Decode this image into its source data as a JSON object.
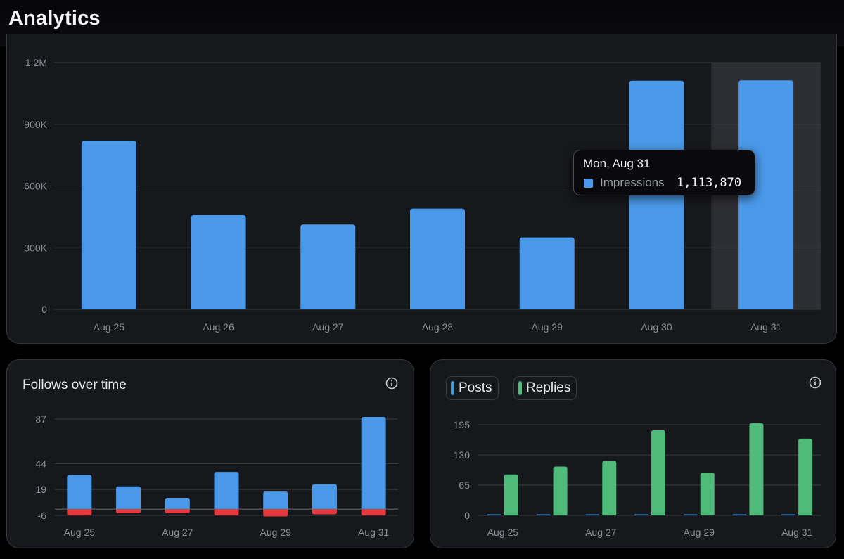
{
  "header": {
    "title": "Analytics"
  },
  "colors": {
    "blue": "#4a99e9",
    "green": "#4fba7a",
    "red": "#e5393f",
    "hover": "#2d2e33",
    "grid": "#3a3c42",
    "tick": "#8b9099"
  },
  "tooltip": {
    "date": "Mon, Aug 31",
    "series": "Impressions",
    "value": "1,113,870"
  },
  "follows": {
    "title": "Follows over time"
  },
  "posts_replies": {
    "legend_posts": "Posts",
    "legend_replies": "Replies"
  },
  "chart_data": [
    {
      "id": "impressions",
      "type": "bar",
      "categories": [
        "Aug 25",
        "Aug 26",
        "Aug 27",
        "Aug 28",
        "Aug 29",
        "Aug 30",
        "Aug 31"
      ],
      "series": [
        {
          "name": "Impressions",
          "values": [
            820000,
            458000,
            413000,
            490000,
            350000,
            1112000,
            1113870
          ]
        }
      ],
      "yticks": [
        0,
        300000,
        600000,
        900000,
        1200000
      ],
      "ytick_labels": [
        "0",
        "300K",
        "600K",
        "900K",
        "1.2M"
      ],
      "ylim": [
        0,
        1200000
      ],
      "highlight": "Aug 31",
      "grid": true
    },
    {
      "id": "follows",
      "type": "bar",
      "title": "Follows over time",
      "categories": [
        "Aug 25",
        "Aug 26",
        "Aug 27",
        "Aug 28",
        "Aug 29",
        "Aug 30",
        "Aug 31"
      ],
      "xtick_labels": [
        "Aug 25",
        "",
        "Aug 27",
        "",
        "Aug 29",
        "",
        "Aug 31"
      ],
      "series": [
        {
          "values": [
            33,
            22,
            11,
            36,
            17,
            24,
            89
          ]
        },
        {
          "values": [
            -6,
            -4,
            -4,
            -6,
            -7,
            -5,
            -6
          ]
        }
      ],
      "yticks": [
        -6,
        19,
        44,
        87
      ],
      "ytick_labels": [
        "-6",
        "19",
        "44",
        "87"
      ],
      "ylim": [
        -6,
        87
      ],
      "grid": true
    },
    {
      "id": "posts_replies",
      "type": "bar",
      "categories": [
        "Aug 25",
        "Aug 26",
        "Aug 27",
        "Aug 28",
        "Aug 29",
        "Aug 30",
        "Aug 31"
      ],
      "xtick_labels": [
        "Aug 25",
        "",
        "Aug 27",
        "",
        "Aug 29",
        "",
        "Aug 31"
      ],
      "series": [
        {
          "name": "Posts",
          "values": [
            0,
            2,
            1,
            1,
            1,
            2,
            1
          ]
        },
        {
          "name": "Replies",
          "values": [
            88,
            105,
            117,
            183,
            92,
            198,
            165
          ]
        }
      ],
      "yticks": [
        0,
        65,
        130,
        195
      ],
      "ytick_labels": [
        "0",
        "65",
        "130",
        "195"
      ],
      "ylim": [
        0,
        195
      ],
      "grid": true
    }
  ]
}
